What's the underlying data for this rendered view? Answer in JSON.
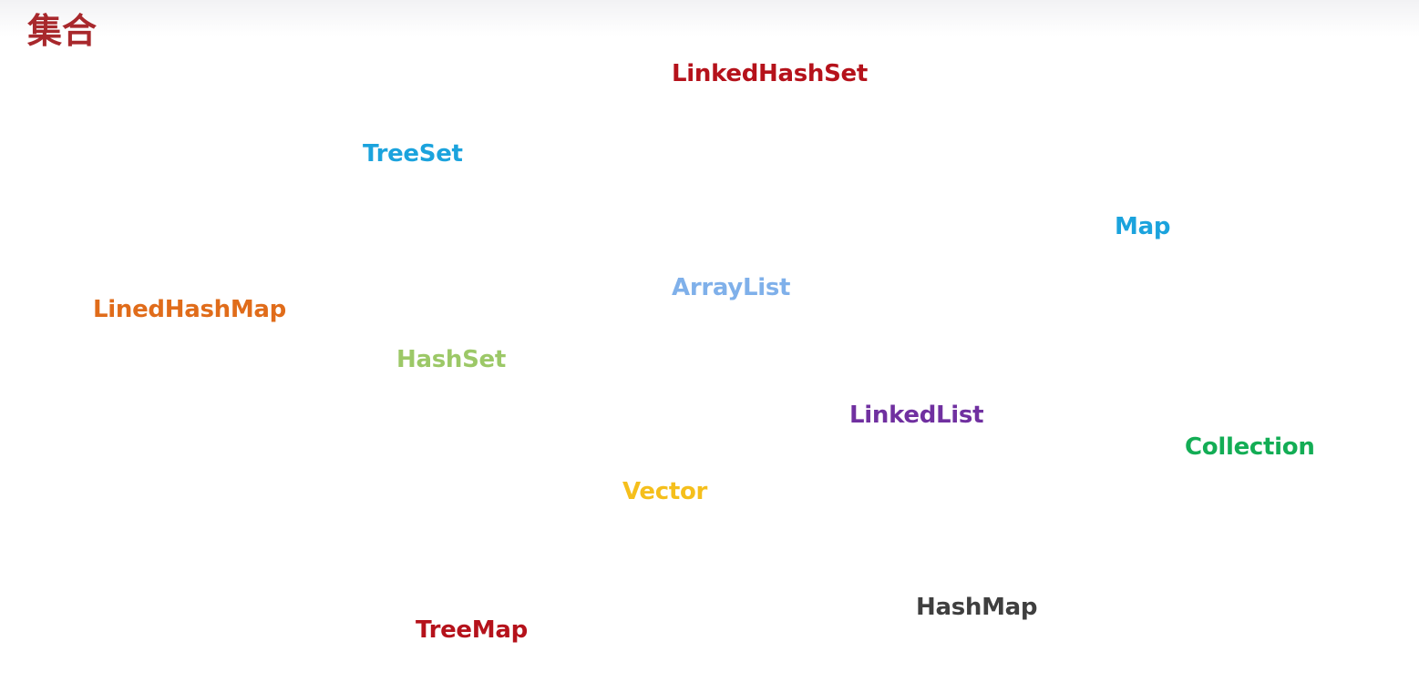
{
  "title": "集合",
  "words": {
    "linkedhashset": {
      "text": "LinkedHashSet",
      "color": "#b5121b"
    },
    "treeset": {
      "text": "TreeSet",
      "color": "#1ba3dd"
    },
    "map": {
      "text": "Map",
      "color": "#1ba3dd"
    },
    "arraylist": {
      "text": "ArrayList",
      "color": "#7fb0ea"
    },
    "linedhashmap": {
      "text": "LinedHashMap",
      "color": "#e06c1a"
    },
    "hashset": {
      "text": "HashSet",
      "color": "#9cc867"
    },
    "linkedlist": {
      "text": "LinkedList",
      "color": "#7030a0"
    },
    "collection": {
      "text": "Collection",
      "color": "#13ad55"
    },
    "vector": {
      "text": "Vector",
      "color": "#f5bf1c"
    },
    "hashmap": {
      "text": "HashMap",
      "color": "#3f3f3f"
    },
    "treemap": {
      "text": "TreeMap",
      "color": "#b5121b"
    }
  }
}
